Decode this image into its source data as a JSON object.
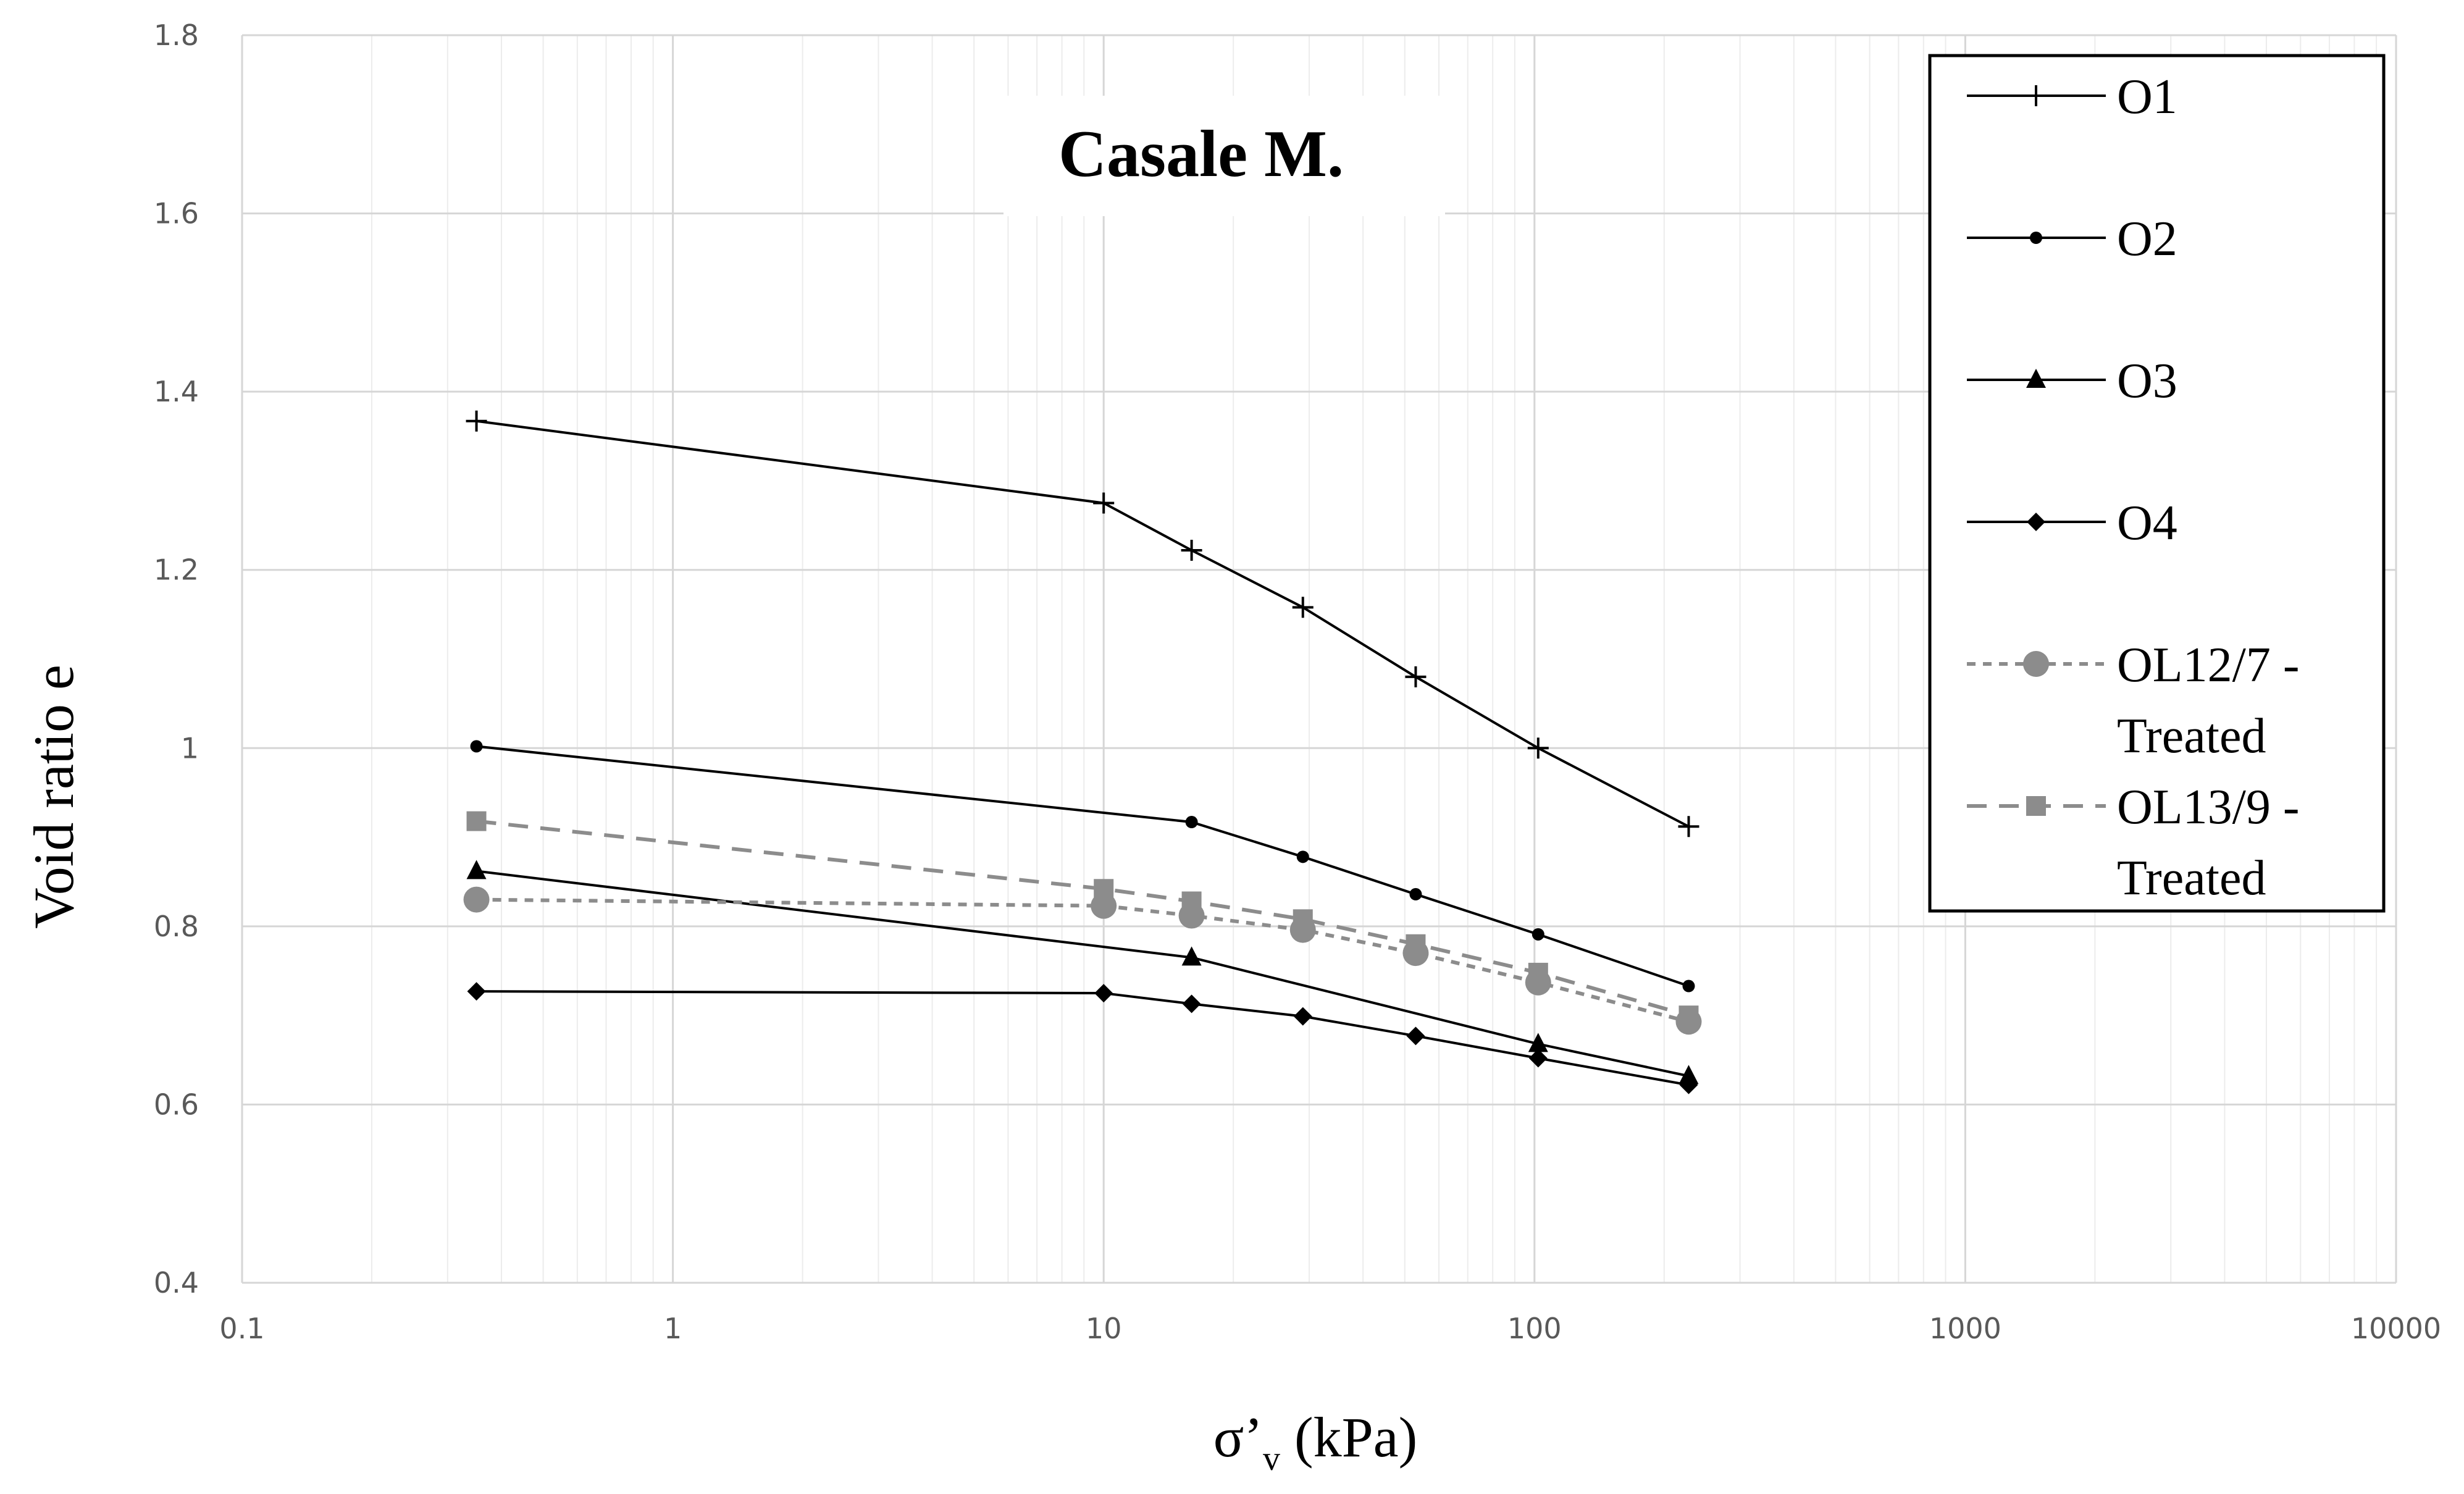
{
  "chart_data": {
    "type": "line",
    "title": "Casale M.",
    "xlabel": "σ’v (kPa)",
    "xlabel_main": "σ’",
    "xlabel_sub": "v",
    "xlabel_unit": " (kPa)",
    "ylabel": "Void ratio e",
    "xscale": "log",
    "xlim": [
      0.1,
      10000
    ],
    "ylim": [
      0.4,
      1.8
    ],
    "x_ticks": [
      0.1,
      1,
      10,
      100,
      1000,
      10000
    ],
    "x_tick_labels": [
      "0.1",
      "1",
      "10",
      "100",
      "1000",
      "10000"
    ],
    "y_ticks": [
      0.4,
      0.6,
      0.8,
      1.0,
      1.2,
      1.4,
      1.6,
      1.8
    ],
    "y_tick_labels": [
      "0.4",
      "0.6",
      "0.8",
      "1",
      "1.2",
      "1.4",
      "1.6",
      "1.8"
    ],
    "grid": true,
    "legend_position": "top-right",
    "series": [
      {
        "name": "O1",
        "legend_lines": [
          "O1"
        ],
        "marker": "plus",
        "line_style": "solid",
        "color": "#000000",
        "x": [
          0.35,
          10,
          16,
          29,
          53,
          102,
          228
        ],
        "y": [
          1.367,
          1.275,
          1.222,
          1.158,
          1.08,
          1.0,
          0.912
        ]
      },
      {
        "name": "O2",
        "legend_lines": [
          "O2"
        ],
        "marker": "circle-small",
        "line_style": "solid",
        "color": "#000000",
        "x": [
          0.35,
          16,
          29,
          53,
          102,
          228
        ],
        "y": [
          1.002,
          0.917,
          0.878,
          0.836,
          0.791,
          0.733
        ]
      },
      {
        "name": "O3",
        "legend_lines": [
          "O3"
        ],
        "marker": "triangle",
        "line_style": "solid",
        "color": "#000000",
        "x": [
          0.35,
          16,
          102,
          228
        ],
        "y": [
          0.862,
          0.765,
          0.668,
          0.632
        ]
      },
      {
        "name": "O4",
        "legend_lines": [
          "O4"
        ],
        "marker": "diamond",
        "line_style": "solid",
        "color": "#000000",
        "x": [
          0.35,
          10,
          16,
          29,
          53,
          102,
          228
        ],
        "y": [
          0.727,
          0.725,
          0.713,
          0.699,
          0.677,
          0.652,
          0.622
        ]
      },
      {
        "name": "OL12/7 - Treated",
        "legend_lines": [
          "OL12/7 -",
          "Treated"
        ],
        "marker": "circle-large",
        "line_style": "dotted",
        "color": "#8c8c8c",
        "x": [
          0.35,
          10,
          16,
          29,
          53,
          102,
          228
        ],
        "y": [
          0.83,
          0.823,
          0.812,
          0.796,
          0.77,
          0.737,
          0.693
        ]
      },
      {
        "name": "OL13/9 - Treated",
        "legend_lines": [
          "OL13/9 -",
          "Treated"
        ],
        "marker": "square",
        "line_style": "dashed",
        "color": "#8c8c8c",
        "x": [
          0.35,
          10,
          16,
          29,
          53,
          102,
          228
        ],
        "y": [
          0.918,
          0.842,
          0.828,
          0.808,
          0.78,
          0.748,
          0.7
        ]
      }
    ]
  }
}
